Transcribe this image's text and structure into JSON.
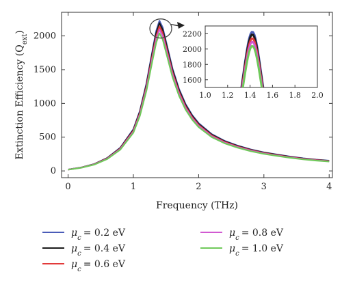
{
  "chart_data": {
    "type": "line",
    "xlabel": "Frequency (THz)",
    "ylabel": "Extinction Efficiency (Q",
    "ylabel_sub": "ext",
    "xlim": [
      -0.1,
      4.05
    ],
    "ylim": [
      -100,
      2350
    ],
    "xticks": [
      0,
      1,
      2,
      3,
      4
    ],
    "yticks": [
      0,
      500,
      1000,
      1500,
      2000
    ],
    "grid": false,
    "legend_position": "bottom",
    "legend_prefix": "μ",
    "legend_sub": "c",
    "series": [
      {
        "name": "= 0.2 eV",
        "color": "#4a5cb8",
        "peak": 2225
      },
      {
        "name": "= 0.4 eV",
        "color": "#1a1a1a",
        "peak": 2190
      },
      {
        "name": "= 0.6 eV",
        "color": "#e23b3b",
        "peak": 2140
      },
      {
        "name": "= 0.8 eV",
        "color": "#d15ad1",
        "peak": 2095
      },
      {
        "name": "= 1.0 eV",
        "color": "#6fc95a",
        "peak": 2040
      }
    ],
    "curve_shape": {
      "x": [
        0.0,
        0.2,
        0.4,
        0.6,
        0.8,
        1.0,
        1.1,
        1.2,
        1.3,
        1.35,
        1.4,
        1.45,
        1.5,
        1.6,
        1.7,
        1.8,
        1.9,
        2.0,
        2.2,
        2.4,
        2.6,
        2.8,
        3.0,
        3.2,
        3.4,
        3.6,
        3.8,
        4.0
      ],
      "relative_y": [
        0.0091,
        0.0227,
        0.0455,
        0.0864,
        0.1545,
        0.2773,
        0.4,
        0.5818,
        0.8182,
        0.9318,
        1.0,
        0.9545,
        0.8636,
        0.6818,
        0.5455,
        0.4455,
        0.3727,
        0.3182,
        0.2455,
        0.2,
        0.1682,
        0.1432,
        0.1236,
        0.1091,
        0.0955,
        0.0841,
        0.075,
        0.0682
      ]
    },
    "inset": {
      "xlim": [
        1.0,
        2.0
      ],
      "ylim": [
        1500,
        2300
      ],
      "xticks": [
        1.0,
        1.2,
        1.4,
        1.6,
        1.8,
        2.0
      ],
      "yticks": [
        1600,
        1800,
        2000,
        2200
      ]
    }
  }
}
